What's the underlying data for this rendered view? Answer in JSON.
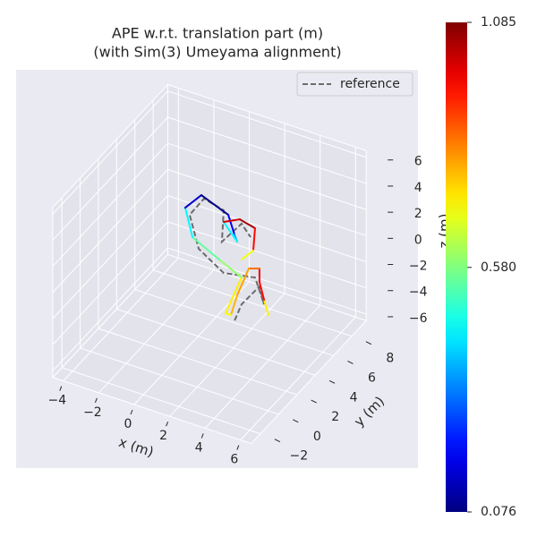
{
  "chart_data": {
    "type": "line3d",
    "title": "APE w.r.t. translation part (m)",
    "subtitle": "(with Sim(3) Umeyama alignment)",
    "xlabel": "x (m)",
    "ylabel": "y (m)",
    "zlabel": "z (m)",
    "xlim": [
      -4.6,
      6.6
    ],
    "ylim": [
      -3,
      9.6
    ],
    "zlim": [
      -6.5,
      6.5
    ],
    "xticks": [
      {
        "value": -4,
        "label": "−4"
      },
      {
        "value": -2,
        "label": "−2"
      },
      0,
      2,
      4,
      6
    ],
    "yticks": [
      {
        "value": -2,
        "label": "−2"
      },
      0,
      2,
      4,
      6,
      8
    ],
    "zticks": [
      {
        "value": -6,
        "label": "−6"
      },
      {
        "value": -4,
        "label": "−4"
      },
      {
        "value": -2,
        "label": "−2"
      },
      0,
      2,
      4,
      6
    ],
    "grid": true,
    "legend": "upper right",
    "series": [
      {
        "name": "reference",
        "color": "#6b6b6b",
        "dashed": true,
        "x": [
          2.06,
          2.45,
          3.46,
          3.72,
          3.21,
          1.44,
          0.03,
          -0.48,
          0.33,
          1.44,
          1.34,
          2.45,
          2.96
        ],
        "y": [
          4,
          4,
          4,
          4,
          4,
          4,
          4,
          4,
          4,
          4,
          4,
          4,
          4
        ],
        "z": [
          -4.36,
          -2.95,
          -1.12,
          -2.37,
          -0.55,
          -1.01,
          0.21,
          2.58,
          4.18,
          3.79,
          1.34,
          3.22,
          2.42
        ]
      }
    ],
    "estimate": {
      "colormap": "jet",
      "x": [
        3.97,
        3.72,
        3.46,
        3.46,
        2.86,
        2.2,
        1.85,
        1.55,
        2.45,
        1.19,
        -0.32,
        -0.73,
        0.18,
        1.7,
        2.05,
        2.2,
        1.44,
        2.35,
        3.21,
        3.11,
        2.45
      ],
      "y": [
        4,
        4,
        4,
        4,
        4,
        4,
        4,
        4,
        4,
        4,
        4,
        4,
        4,
        4,
        4,
        4,
        4,
        4,
        4,
        4,
        4
      ],
      "z": [
        -3.08,
        -2.03,
        -0.78,
        0.25,
        -0.02,
        -2.38,
        -4.04,
        -4.04,
        -0.89,
        -0.09,
        0.94,
        3.01,
        4.38,
        3.56,
        2.21,
        1.73,
        2.9,
        3.51,
        3.22,
        1.46,
        0.48
      ],
      "ape": [
        0.72,
        0.95,
        0.98,
        0.85,
        0.8,
        0.78,
        0.7,
        0.72,
        0.6,
        0.55,
        0.45,
        0.15,
        0.08,
        0.2,
        0.35,
        0.45,
        1.0,
        1.05,
        0.95,
        0.7,
        0.6
      ]
    },
    "clim": [
      0.076,
      1.085
    ],
    "cticks": [
      0.076,
      {
        "value": 0.58,
        "label": "0.580"
      },
      1.085
    ]
  }
}
